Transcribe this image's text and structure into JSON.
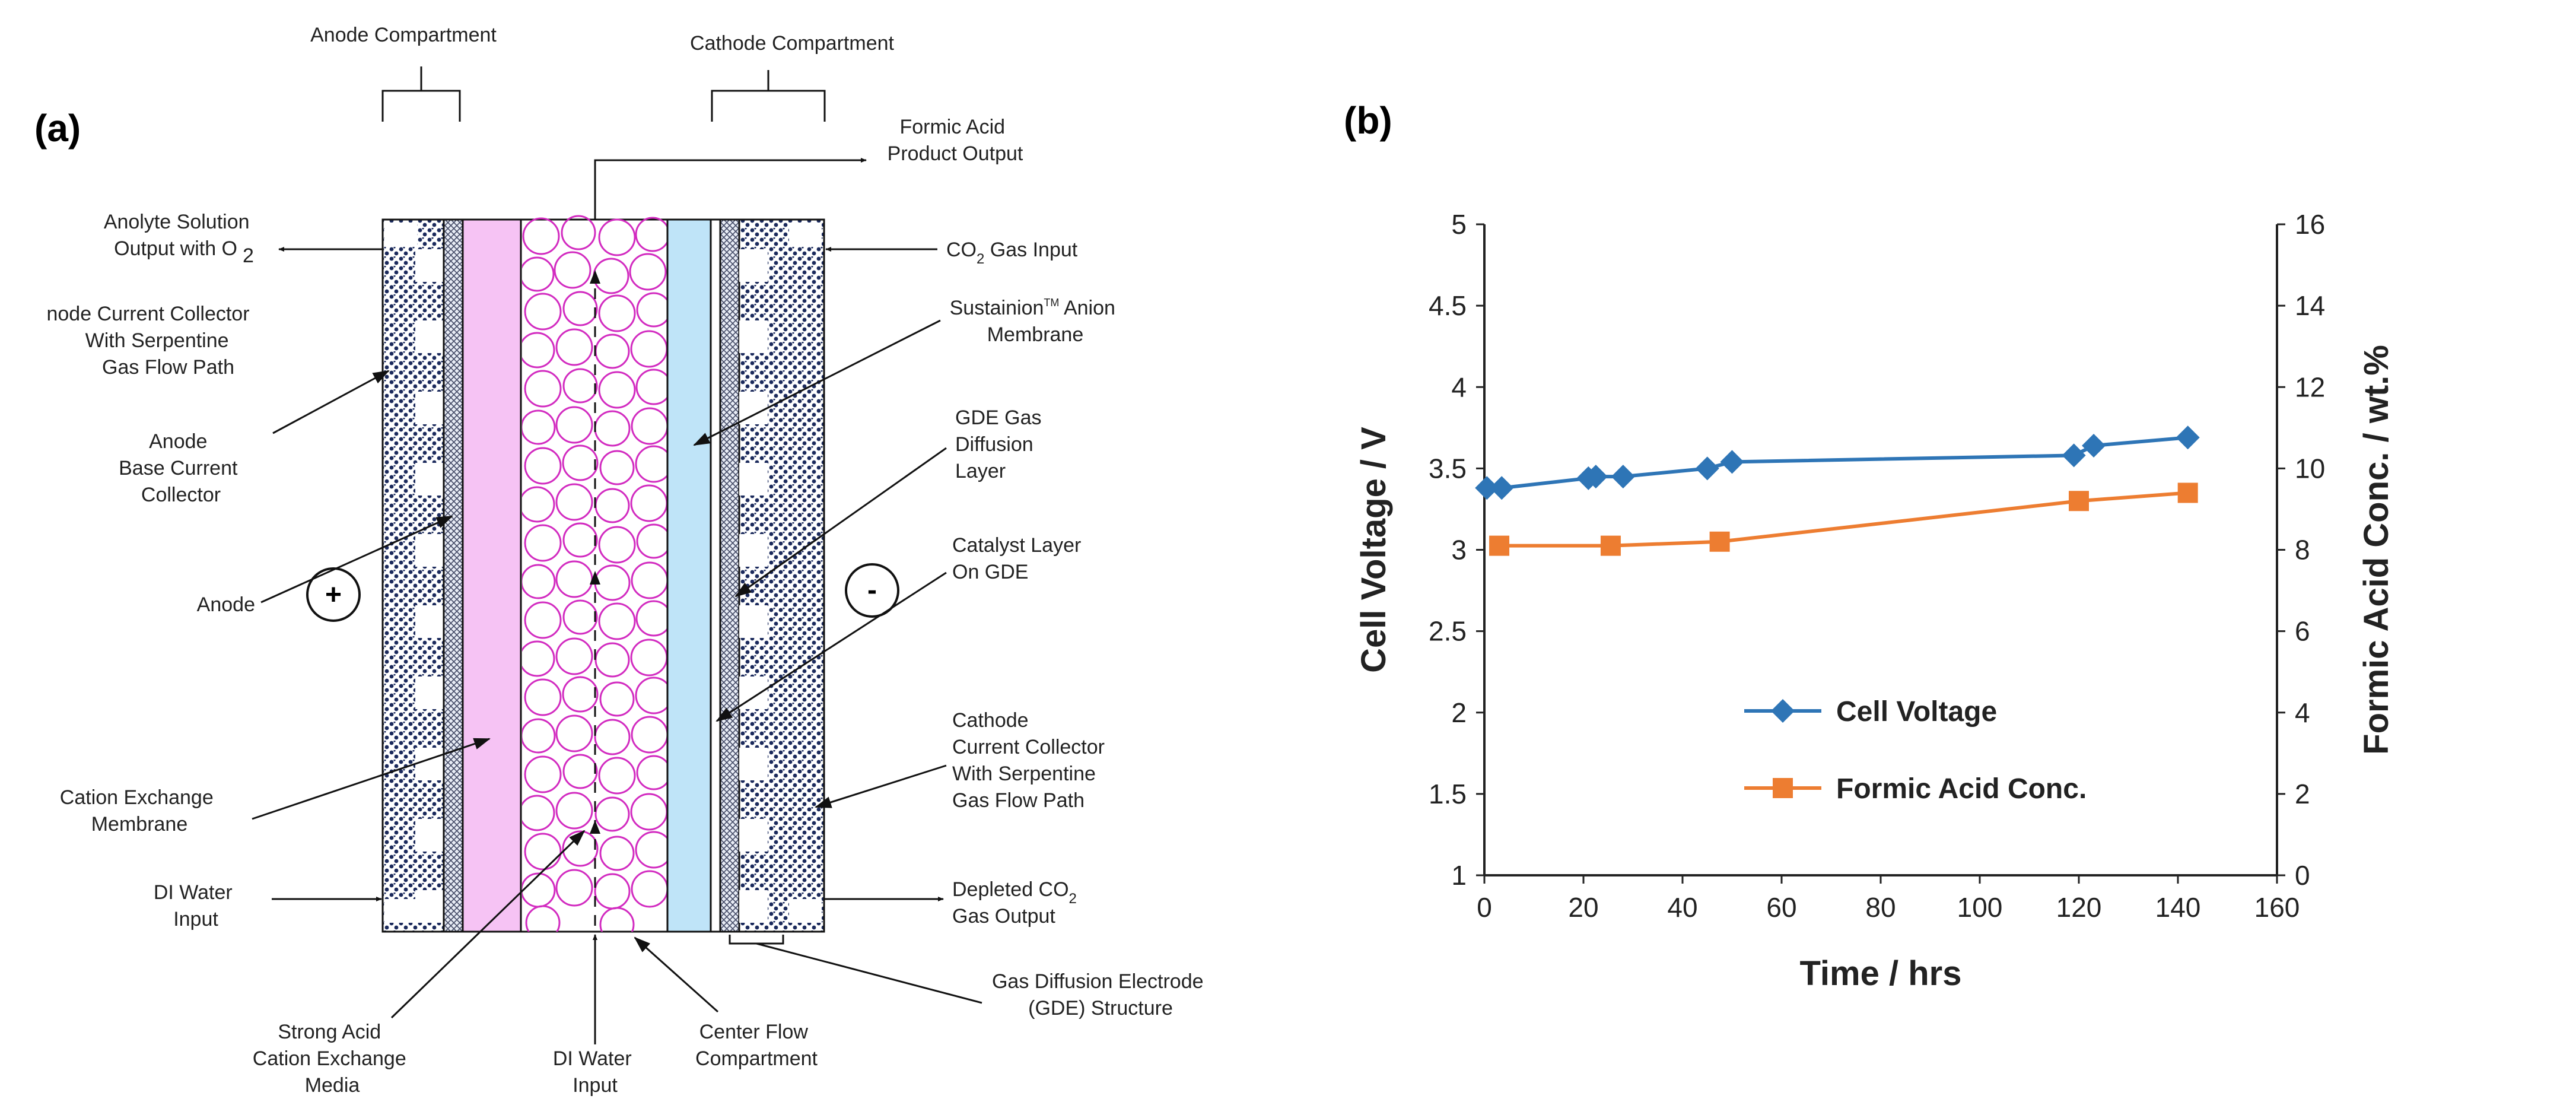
{
  "panel_a": {
    "tag": "(a)",
    "header_left": "Anode Compartment",
    "header_right": "Cathode Compartment",
    "plus_sign": "+",
    "minus_sign": "-",
    "labels": {
      "product_output_l1": "Formic Acid",
      "product_output_l2": "Product Output",
      "anolyte_l1": "Anolyte Solution",
      "anolyte_l2_pre": "Output with O",
      "anolyte_l2_sub": "2",
      "acc_l1": "node Current Collector",
      "acc_l2": "With Serpentine",
      "acc_l3": "Gas Flow Path",
      "abase_l1": "Anode",
      "abase_l2": "Base Current",
      "abase_l3": "Collector",
      "anode": "Anode",
      "cem_l1": "Cation Exchange",
      "cem_l2": "Membrane",
      "diwater_l1": "DI Water",
      "diwater_l2": "Input",
      "media_l1": "Strong Acid",
      "media_l2": "Cation Exchange",
      "media_l3": "Media",
      "diwater_bottom_l1": "DI Water",
      "diwater_bottom_l2": "Input",
      "center_l1": "Center Flow",
      "center_l2": "Compartment",
      "co2_input_pre": "CO",
      "co2_input_sub": "2",
      "co2_input_post": " Gas Input",
      "sust_l1_pre": "Sustainion",
      "sust_l1_tm": "TM",
      "sust_l1_post": " Anion",
      "sust_l2": "Membrane",
      "gdl_l1": "GDE Gas",
      "gdl_l2": "Diffusion",
      "gdl_l3": "Layer",
      "cat_l1": "Catalyst Layer",
      "cat_l2": "On GDE",
      "ccc_l1": "Cathode",
      "ccc_l2": "Current Collector",
      "ccc_l3": "With Serpentine",
      "ccc_l4": "Gas Flow Path",
      "depleted_l1_pre": "Depleted CO",
      "depleted_l1_sub": "2",
      "depleted_l2": "Gas Output",
      "gde_l1": "Gas Diffusion Electrode",
      "gde_l2": "(GDE) Structure"
    }
  },
  "panel_b": {
    "tag": "(b)"
  },
  "chart_data": {
    "type": "line",
    "title": "",
    "xlabel": "Time / hrs",
    "ylabel": "Cell Voltage / V",
    "y2label": "Formic Acid Conc. / wt.%",
    "xlim": [
      0,
      160
    ],
    "ylim": [
      1,
      5
    ],
    "y2lim": [
      0,
      16
    ],
    "x_ticks": [
      0,
      20,
      40,
      60,
      80,
      100,
      120,
      140,
      160
    ],
    "y_ticks": [
      1,
      1.5,
      2,
      2.5,
      3,
      3.5,
      4,
      4.5,
      5
    ],
    "y2_ticks": [
      0,
      2,
      4,
      6,
      8,
      10,
      12,
      14,
      16
    ],
    "grid": false,
    "legend_position": "center",
    "series": [
      {
        "name": "Cell Voltage",
        "axis": "left",
        "marker": "diamond",
        "color": "#2E75B6",
        "x": [
          0.5,
          3.5,
          21,
          22.5,
          28,
          45,
          50,
          119,
          123,
          142
        ],
        "y": [
          3.38,
          3.38,
          3.44,
          3.45,
          3.45,
          3.5,
          3.54,
          3.58,
          3.64,
          3.69
        ]
      },
      {
        "name": "Formic Acid Conc.",
        "axis": "right",
        "marker": "square",
        "color": "#ED7D31",
        "x": [
          3,
          25.5,
          47.5,
          120,
          142
        ],
        "y": [
          8.1,
          8.1,
          8.2,
          9.2,
          9.4
        ]
      }
    ]
  }
}
